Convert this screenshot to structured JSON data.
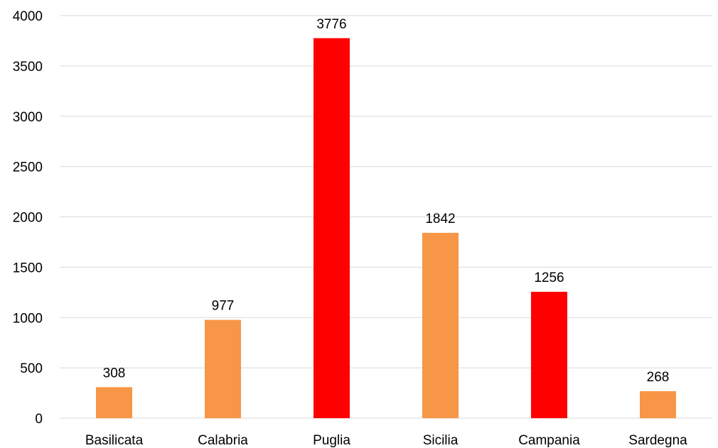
{
  "chart_data": {
    "type": "bar",
    "title": "",
    "xlabel": "",
    "ylabel": "",
    "categories": [
      "Basilicata",
      "Calabria",
      "Puglia",
      "Sicilia",
      "Campania",
      "Sardegna"
    ],
    "values": [
      308,
      977,
      3776,
      1842,
      1256,
      268
    ],
    "bar_colors": [
      "#f79646",
      "#f79646",
      "#ff0000",
      "#f79646",
      "#ff0000",
      "#f79646"
    ],
    "ylim": [
      0,
      4000
    ],
    "yticks": [
      0,
      500,
      1000,
      1500,
      2000,
      2500,
      3000,
      3500,
      4000
    ],
    "grid": true,
    "legend": "none",
    "data_labels": true
  }
}
